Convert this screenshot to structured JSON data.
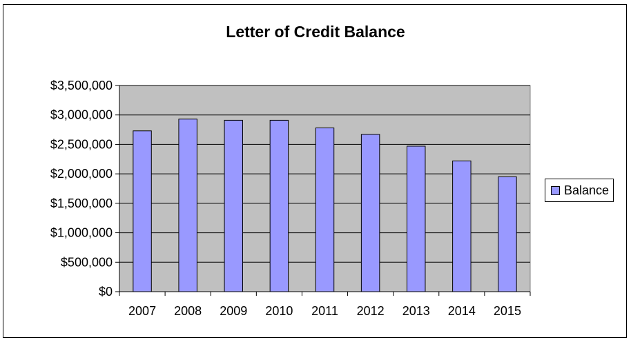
{
  "chart_data": {
    "type": "bar",
    "title": "Letter of Credit Balance",
    "xlabel": "",
    "ylabel": "",
    "categories": [
      "2007",
      "2008",
      "2009",
      "2010",
      "2011",
      "2012",
      "2013",
      "2014",
      "2015"
    ],
    "series": [
      {
        "name": "Balance",
        "values": [
          2730000,
          2930000,
          2910000,
          2910000,
          2780000,
          2670000,
          2470000,
          2220000,
          1950000
        ]
      }
    ],
    "ylim": [
      0,
      3500000
    ],
    "yticks": [
      0,
      500000,
      1000000,
      1500000,
      2000000,
      2500000,
      3000000,
      3500000
    ],
    "ytick_labels": [
      "$0",
      "$500,000",
      "$1,000,000",
      "$1,500,000",
      "$2,000,000",
      "$2,500,000",
      "$3,000,000",
      "$3,500,000"
    ],
    "grid": true,
    "legend_position": "right",
    "colors": {
      "bar_fill": "#9999ff",
      "bar_stroke": "#000000",
      "plot_background": "#c0c0c0",
      "gridline": "#000000"
    }
  }
}
